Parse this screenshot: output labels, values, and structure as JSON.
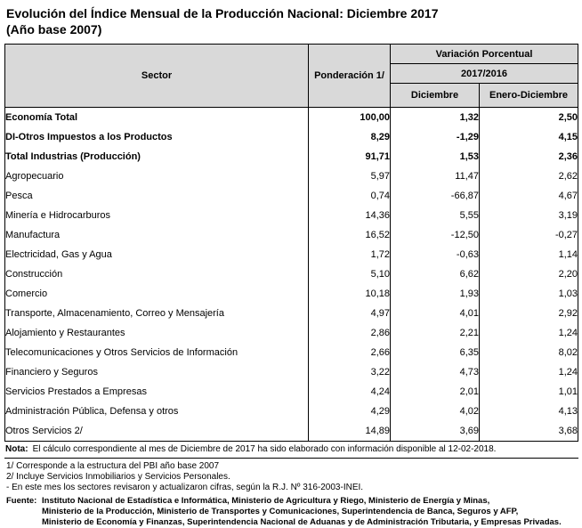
{
  "title": {
    "line1": "Evolución del Índice Mensual de la Producción Nacional: Diciembre 2017",
    "line2": "(Año base 2007)"
  },
  "colors": {
    "header_bg": "#d9d9d9",
    "border": "#000000",
    "text": "#000000",
    "background": "#ffffff"
  },
  "table": {
    "headers": {
      "sector": "Sector",
      "ponderacion": "Ponderación 1/",
      "variacion": "Variación Porcentual",
      "periodo": "2017/2016",
      "diciembre": "Diciembre",
      "enero_diciembre": "Enero-Diciembre"
    },
    "rows": [
      {
        "sector": "Economía Total",
        "ponderacion": "100,00",
        "diciembre": "1,32",
        "enero_diciembre": "2,50",
        "bold": true,
        "indent": 0
      },
      {
        "sector": "DI-Otros Impuestos a los Productos",
        "ponderacion": "8,29",
        "diciembre": "-1,29",
        "enero_diciembre": "4,15",
        "bold": true,
        "indent": 1
      },
      {
        "sector": "Total  Industrias (Producción)",
        "ponderacion": "91,71",
        "diciembre": "1,53",
        "enero_diciembre": "2,36",
        "bold": true,
        "indent": 1
      },
      {
        "sector": "Agropecuario",
        "ponderacion": "5,97",
        "diciembre": "11,47",
        "enero_diciembre": "2,62",
        "bold": false,
        "indent": 2
      },
      {
        "sector": "Pesca",
        "ponderacion": "0,74",
        "diciembre": "-66,87",
        "enero_diciembre": "4,67",
        "bold": false,
        "indent": 2
      },
      {
        "sector": "Minería e Hidrocarburos",
        "ponderacion": "14,36",
        "diciembre": "5,55",
        "enero_diciembre": "3,19",
        "bold": false,
        "indent": 2
      },
      {
        "sector": "Manufactura",
        "ponderacion": "16,52",
        "diciembre": "-12,50",
        "enero_diciembre": "-0,27",
        "bold": false,
        "indent": 2
      },
      {
        "sector": "Electricidad, Gas y Agua",
        "ponderacion": "1,72",
        "diciembre": "-0,63",
        "enero_diciembre": "1,14",
        "bold": false,
        "indent": 2
      },
      {
        "sector": "Construcción",
        "ponderacion": "5,10",
        "diciembre": "6,62",
        "enero_diciembre": "2,20",
        "bold": false,
        "indent": 2
      },
      {
        "sector": "Comercio",
        "ponderacion": "10,18",
        "diciembre": "1,93",
        "enero_diciembre": "1,03",
        "bold": false,
        "indent": 2
      },
      {
        "sector": "Transporte, Almacenamiento, Correo y Mensajería",
        "ponderacion": "4,97",
        "diciembre": "4,01",
        "enero_diciembre": "2,92",
        "bold": false,
        "indent": 2
      },
      {
        "sector": "Alojamiento y Restaurantes",
        "ponderacion": "2,86",
        "diciembre": "2,21",
        "enero_diciembre": "1,24",
        "bold": false,
        "indent": 2
      },
      {
        "sector": "Telecomunicaciones y Otros Servicios de Información",
        "ponderacion": "2,66",
        "diciembre": "6,35",
        "enero_diciembre": "8,02",
        "bold": false,
        "indent": 2
      },
      {
        "sector": "Financiero y Seguros",
        "ponderacion": "3,22",
        "diciembre": "4,73",
        "enero_diciembre": "1,24",
        "bold": false,
        "indent": 2
      },
      {
        "sector": "Servicios Prestados a Empresas",
        "ponderacion": "4,24",
        "diciembre": "2,01",
        "enero_diciembre": "1,01",
        "bold": false,
        "indent": 2
      },
      {
        "sector": "Administración Pública, Defensa y otros",
        "ponderacion": "4,29",
        "diciembre": "4,02",
        "enero_diciembre": "4,13",
        "bold": false,
        "indent": 2
      },
      {
        "sector": "Otros Servicios 2/",
        "ponderacion": "14,89",
        "diciembre": "3,69",
        "enero_diciembre": "3,68",
        "bold": false,
        "indent": 2
      }
    ]
  },
  "notes": {
    "nota_label": "Nota:",
    "nota_text": "El cálculo correspondiente al mes de Diciembre de 2017 ha sido elaborado con información disponible al 12-02-2018.",
    "footnote1": "1/ Corresponde a la estructura del PBI año base 2007",
    "footnote2": "2/ Incluye Servicios Inmobiliarios y Servicios Personales.",
    "footnote3": "- En este mes los sectores revisaron y actualizaron cifras, según la R.J. Nº 316-2003-INEI.",
    "fuente_label": "Fuente:",
    "fuente_lines": [
      "Instituto Nacional de Estadística e Informática, Ministerio de Agricultura y Riego, Ministerio de Energía y Minas,",
      "Ministerio de la Producción, Ministerio de Transportes y Comunicaciones, Superintendencia de Banca, Seguros y AFP,",
      "Ministerio de Economía y Finanzas, Superintendencia Nacional de Aduanas y de Administración Tributaria, y Empresas Privadas."
    ]
  },
  "chart_data": {
    "type": "table",
    "title": "Evolución del Índice Mensual de la Producción Nacional: Diciembre 2017 (Año base 2007)",
    "columns": [
      "Sector",
      "Ponderación 1/",
      "Variación Porcentual 2017/2016 Diciembre",
      "Variación Porcentual 2017/2016 Enero-Diciembre"
    ],
    "rows": [
      [
        "Economía Total",
        100.0,
        1.32,
        2.5
      ],
      [
        "DI-Otros Impuestos a los Productos",
        8.29,
        -1.29,
        4.15
      ],
      [
        "Total Industrias (Producción)",
        91.71,
        1.53,
        2.36
      ],
      [
        "Agropecuario",
        5.97,
        11.47,
        2.62
      ],
      [
        "Pesca",
        0.74,
        -66.87,
        4.67
      ],
      [
        "Minería e Hidrocarburos",
        14.36,
        5.55,
        3.19
      ],
      [
        "Manufactura",
        16.52,
        -12.5,
        -0.27
      ],
      [
        "Electricidad, Gas y Agua",
        1.72,
        -0.63,
        1.14
      ],
      [
        "Construcción",
        5.1,
        6.62,
        2.2
      ],
      [
        "Comercio",
        10.18,
        1.93,
        1.03
      ],
      [
        "Transporte, Almacenamiento, Correo y Mensajería",
        4.97,
        4.01,
        2.92
      ],
      [
        "Alojamiento y Restaurantes",
        2.86,
        2.21,
        1.24
      ],
      [
        "Telecomunicaciones y Otros Servicios de Información",
        2.66,
        6.35,
        8.02
      ],
      [
        "Financiero y Seguros",
        3.22,
        4.73,
        1.24
      ],
      [
        "Servicios Prestados a Empresas",
        4.24,
        2.01,
        1.01
      ],
      [
        "Administración Pública, Defensa y otros",
        4.29,
        4.02,
        4.13
      ],
      [
        "Otros Servicios 2/",
        14.89,
        3.69,
        3.68
      ]
    ]
  }
}
